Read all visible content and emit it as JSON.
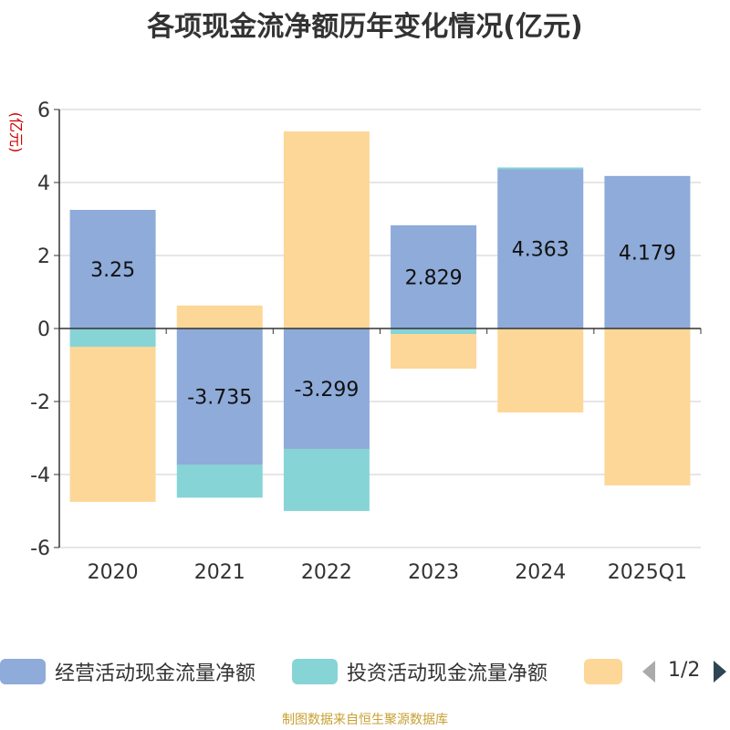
{
  "chart_data": {
    "type": "bar",
    "stacked": true,
    "title": "各项现金流净额历年变化情况(亿元)",
    "ylabel": "(亿元)",
    "categories": [
      "2020",
      "2021",
      "2022",
      "2023",
      "2024",
      "2025Q1"
    ],
    "ylim": [
      -6,
      6
    ],
    "yticks": [
      -6,
      -4,
      -2,
      0,
      2,
      4,
      6
    ],
    "grid": true,
    "series": [
      {
        "name": "经营活动现金流量净额",
        "color": "#8eabd9",
        "values": [
          3.25,
          -3.735,
          -3.299,
          2.829,
          4.363,
          4.179
        ],
        "labels": [
          "3.25",
          "-3.735",
          "-3.299",
          "2.829",
          "4.363",
          "4.179"
        ]
      },
      {
        "name": "投资活动现金流量净额",
        "color": "#87d4d7",
        "values": [
          -0.5,
          -0.9,
          -1.7,
          -0.15,
          0.05,
          0
        ]
      },
      {
        "name": "",
        "color": "#fdd797",
        "values": [
          -4.25,
          0.63,
          5.4,
          -0.95,
          -2.3,
          -4.3
        ]
      }
    ],
    "legend_position": "bottom"
  },
  "legend": {
    "page": "1/2"
  },
  "source": "制图数据来自恒生聚源数据库"
}
